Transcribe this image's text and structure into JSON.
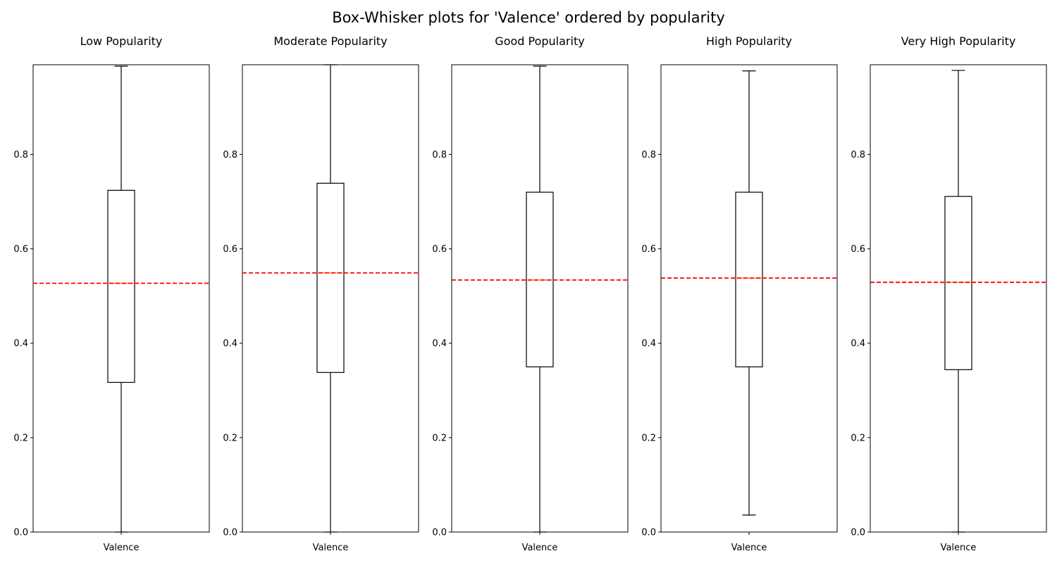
{
  "chart_data": {
    "title": "Box-Whisker plots for 'Valence' ordered by popularity",
    "panels": [
      {
        "type": "box",
        "title": "Low Popularity",
        "xlabel": "Valence",
        "ylim": [
          0,
          0.99
        ],
        "yticks": [
          0.0,
          0.2,
          0.4,
          0.6,
          0.8
        ],
        "ytick_labels": [
          "0.0",
          "0.2",
          "0.4",
          "0.6",
          "0.8"
        ],
        "whislo": 0.0,
        "q1": 0.317,
        "med": 0.527,
        "q3": 0.724,
        "whishi": 0.987,
        "mean_line": 0.527
      },
      {
        "type": "box",
        "title": "Moderate Popularity",
        "xlabel": "Valence",
        "ylim": [
          0,
          0.99
        ],
        "yticks": [
          0.0,
          0.2,
          0.4,
          0.6,
          0.8
        ],
        "ytick_labels": [
          "0.0",
          "0.2",
          "0.4",
          "0.6",
          "0.8"
        ],
        "whislo": 0.0,
        "q1": 0.338,
        "med": 0.549,
        "q3": 0.739,
        "whishi": 0.99,
        "mean_line": 0.549
      },
      {
        "type": "box",
        "title": "Good Popularity",
        "xlabel": "Valence",
        "ylim": [
          0,
          0.99
        ],
        "yticks": [
          0.0,
          0.2,
          0.4,
          0.6,
          0.8
        ],
        "ytick_labels": [
          "0.0",
          "0.2",
          "0.4",
          "0.6",
          "0.8"
        ],
        "whislo": 0.0,
        "q1": 0.35,
        "med": 0.534,
        "q3": 0.72,
        "whishi": 0.987,
        "mean_line": 0.534
      },
      {
        "type": "box",
        "title": "High Popularity",
        "xlabel": "Valence",
        "ylim": [
          0,
          0.99
        ],
        "yticks": [
          0.0,
          0.2,
          0.4,
          0.6,
          0.8
        ],
        "ytick_labels": [
          "0.0",
          "0.2",
          "0.4",
          "0.6",
          "0.8"
        ],
        "whislo": 0.036,
        "q1": 0.35,
        "med": 0.538,
        "q3": 0.72,
        "whishi": 0.977,
        "mean_line": 0.538
      },
      {
        "type": "box",
        "title": "Very High Popularity",
        "xlabel": "Valence",
        "ylim": [
          0,
          0.99
        ],
        "yticks": [
          0.0,
          0.2,
          0.4,
          0.6,
          0.8
        ],
        "ytick_labels": [
          "0.0",
          "0.2",
          "0.4",
          "0.6",
          "0.8"
        ],
        "whislo": 0.0,
        "q1": 0.344,
        "med": 0.529,
        "q3": 0.711,
        "whishi": 0.978,
        "mean_line": 0.529
      }
    ],
    "colors": {
      "box": "#000000",
      "median": "#ff7f0e",
      "mean_line": "#ff0000"
    }
  }
}
